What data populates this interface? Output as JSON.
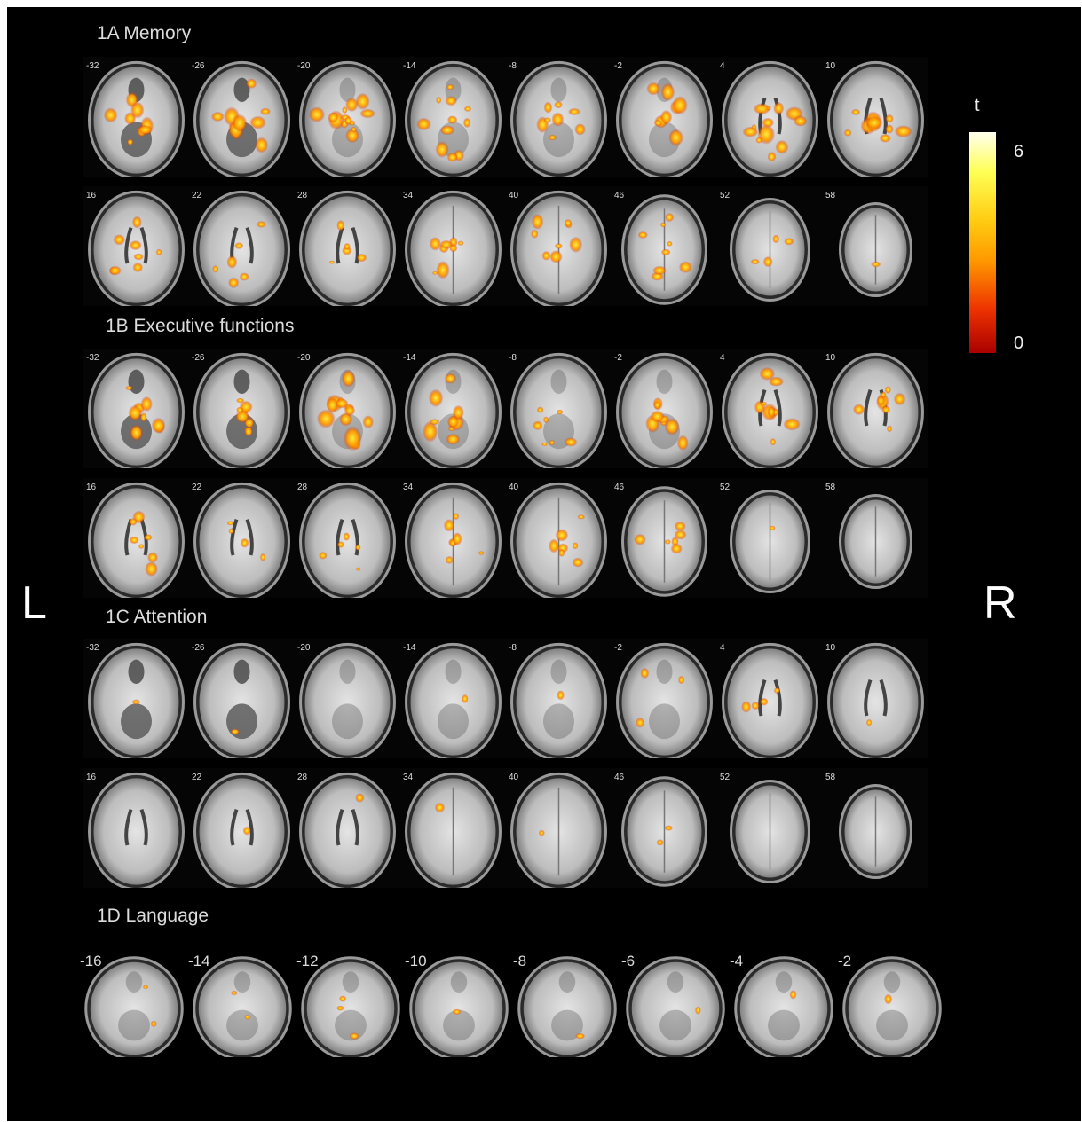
{
  "sections": [
    {
      "title": "1A Memory",
      "rows": [
        {
          "slices": [
            "-32",
            "-26",
            "-20",
            "-14",
            "-8",
            "-2",
            "4",
            "10"
          ],
          "activation": [
            0.6,
            0.7,
            0.95,
            0.8,
            0.6,
            0.65,
            0.85,
            0.8
          ]
        },
        {
          "slices": [
            "16",
            "22",
            "28",
            "34",
            "40",
            "46",
            "52",
            "58"
          ],
          "activation": [
            0.55,
            0.4,
            0.35,
            0.6,
            0.55,
            0.55,
            0.3,
            0.05
          ]
        }
      ]
    },
    {
      "title": "1B Executive functions",
      "rows": [
        {
          "slices": [
            "-32",
            "-26",
            "-20",
            "-14",
            "-8",
            "-2",
            "4",
            "10"
          ],
          "activation": [
            0.55,
            0.6,
            0.85,
            0.7,
            0.5,
            0.6,
            0.8,
            0.6
          ]
        },
        {
          "slices": [
            "16",
            "22",
            "28",
            "34",
            "40",
            "46",
            "52",
            "58"
          ],
          "activation": [
            0.5,
            0.3,
            0.35,
            0.5,
            0.5,
            0.45,
            0.1,
            0.0
          ]
        }
      ]
    },
    {
      "title": "1C Attention",
      "rows": [
        {
          "slices": [
            "-32",
            "-26",
            "-20",
            "-14",
            "-8",
            "-2",
            "4",
            "10"
          ],
          "activation": [
            0.1,
            0.08,
            0.0,
            0.08,
            0.1,
            0.2,
            0.3,
            0.08
          ]
        },
        {
          "slices": [
            "16",
            "22",
            "28",
            "34",
            "40",
            "46",
            "52",
            "58"
          ],
          "activation": [
            0.0,
            0.08,
            0.05,
            0.1,
            0.05,
            0.12,
            0.03,
            0.0
          ]
        }
      ]
    },
    {
      "title": "1D Language",
      "rows": [
        {
          "slices": [
            "-16",
            "-14",
            "-12",
            "-10",
            "-8",
            "-6",
            "-4",
            "-2"
          ],
          "activation": [
            0.12,
            0.15,
            0.2,
            0.1,
            0.08,
            0.06,
            0.06,
            0.05
          ]
        }
      ]
    }
  ],
  "side_labels": {
    "left": "L",
    "right": "R"
  },
  "colorbar": {
    "label": "t",
    "max": "6",
    "min": "0"
  },
  "colors": {
    "background": "#000000",
    "activation_hot": "#ffee33",
    "activation_warm": "#ff9900",
    "activation_cool": "#cc2200"
  }
}
